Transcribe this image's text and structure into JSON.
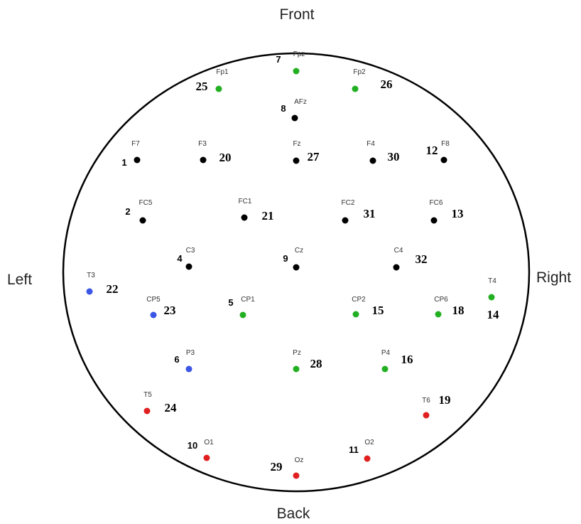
{
  "labels": {
    "front": "Front",
    "back": "Back",
    "left": "Left",
    "right": "Right"
  },
  "colors": {
    "black": "#000000",
    "green": "#22b022",
    "blue": "#3b55e6",
    "red": "#e02020"
  },
  "electrodes": [
    {
      "id": "Fp1",
      "name": "Fp1",
      "num_a": "25",
      "num_b": "",
      "color": "green"
    },
    {
      "id": "Fpz",
      "name": "Fpz",
      "num_a": "7",
      "num_b": "",
      "color": "green"
    },
    {
      "id": "Fp2",
      "name": "Fp2",
      "num_a": "26",
      "num_b": "",
      "color": "green"
    },
    {
      "id": "AFz",
      "name": "AFz",
      "num_a": "8",
      "num_b": "",
      "color": "black"
    },
    {
      "id": "F7",
      "name": "F7",
      "num_a": "1",
      "num_b": "",
      "color": "black"
    },
    {
      "id": "F3",
      "name": "F3",
      "num_a": "20",
      "num_b": "",
      "color": "black"
    },
    {
      "id": "Fz",
      "name": "Fz",
      "num_a": "27",
      "num_b": "",
      "color": "black"
    },
    {
      "id": "F4",
      "name": "F4",
      "num_a": "30",
      "num_b": "",
      "color": "black"
    },
    {
      "id": "F8",
      "name": "F8",
      "num_a": "12",
      "num_b": "",
      "color": "black"
    },
    {
      "id": "FC5",
      "name": "FC5",
      "num_a": "2",
      "num_b": "",
      "color": "black"
    },
    {
      "id": "FC1",
      "name": "FC1",
      "num_a": "21",
      "num_b": "",
      "color": "black"
    },
    {
      "id": "FC2",
      "name": "FC2",
      "num_a": "31",
      "num_b": "",
      "color": "black"
    },
    {
      "id": "FC6",
      "name": "FC6",
      "num_a": "13",
      "num_b": "",
      "color": "black"
    },
    {
      "id": "C3",
      "name": "C3",
      "num_a": "4",
      "num_b": "",
      "color": "black"
    },
    {
      "id": "Cz",
      "name": "Cz",
      "num_a": "9",
      "num_b": "",
      "color": "black"
    },
    {
      "id": "C4",
      "name": "C4",
      "num_a": "32",
      "num_b": "",
      "color": "black"
    },
    {
      "id": "T3",
      "name": "T3",
      "num_a": "22",
      "num_b": "",
      "color": "blue"
    },
    {
      "id": "CP5",
      "name": "CP5",
      "num_a": "23",
      "num_b": "",
      "color": "blue"
    },
    {
      "id": "CP1",
      "name": "CP1",
      "num_a": "5",
      "num_b": "",
      "color": "green"
    },
    {
      "id": "CP2",
      "name": "CP2",
      "num_a": "15",
      "num_b": "",
      "color": "green"
    },
    {
      "id": "CP6",
      "name": "CP6",
      "num_a": "18",
      "num_b": "",
      "color": "green"
    },
    {
      "id": "T4",
      "name": "T4",
      "num_a": "14",
      "num_b": "",
      "color": "green"
    },
    {
      "id": "P3",
      "name": "P3",
      "num_a": "6",
      "num_b": "",
      "color": "blue"
    },
    {
      "id": "Pz",
      "name": "Pz",
      "num_a": "28",
      "num_b": "",
      "color": "green"
    },
    {
      "id": "P4",
      "name": "P4",
      "num_a": "16",
      "num_b": "",
      "color": "green"
    },
    {
      "id": "T5",
      "name": "T5",
      "num_a": "24",
      "num_b": "",
      "color": "red"
    },
    {
      "id": "T6",
      "name": "T6",
      "num_a": "19",
      "num_b": "",
      "color": "red"
    },
    {
      "id": "O1",
      "name": "O1",
      "num_a": "10",
      "num_b": "",
      "color": "red"
    },
    {
      "id": "Oz",
      "name": "Oz",
      "num_a": "29",
      "num_b": "",
      "color": "red"
    },
    {
      "id": "O2",
      "name": "O2",
      "num_a": "11",
      "num_b": "",
      "color": "red"
    }
  ]
}
